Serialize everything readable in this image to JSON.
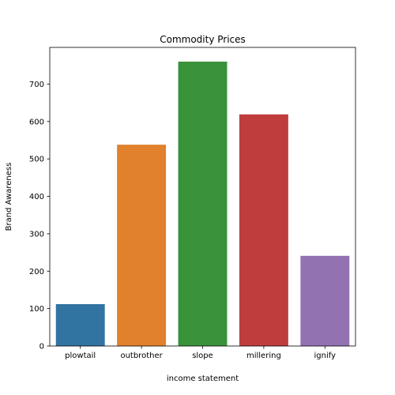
{
  "chart_data": {
    "type": "bar",
    "title": "Commodity Prices",
    "xlabel": "income statement",
    "ylabel": "Brand Awareness",
    "categories": [
      "plowtail",
      "outbrother",
      "slope",
      "millering",
      "ignify"
    ],
    "values": [
      112,
      538,
      760,
      619,
      241
    ],
    "colors": [
      "#3274a1",
      "#e1812c",
      "#3a923a",
      "#c03d3e",
      "#9372b2"
    ],
    "ylim": [
      0,
      798
    ],
    "yticks": [
      0,
      100,
      200,
      300,
      400,
      500,
      600,
      700
    ],
    "grid": false,
    "legend": "none"
  }
}
